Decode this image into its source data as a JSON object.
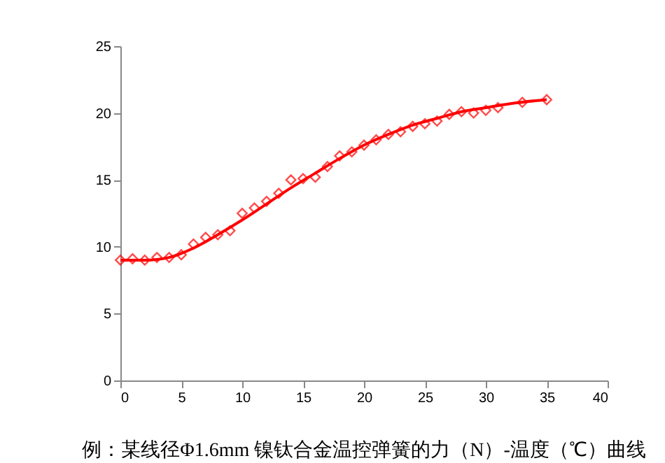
{
  "chart_data": {
    "type": "scatter",
    "xlim": [
      0,
      40
    ],
    "xticks": [
      0,
      5,
      10,
      15,
      20,
      25,
      30,
      35,
      40
    ],
    "ylim": [
      0,
      25
    ],
    "yticks": [
      0,
      5,
      10,
      15,
      20,
      25
    ],
    "grid": false,
    "annotations": [
      "例：某线径Φ1.6mm 镍钛合金温控弹簧的力（N）-温度（℃）曲线"
    ],
    "series": [
      {
        "marker": "diamond",
        "color": "#ff0000",
        "x": [
          0,
          1,
          2,
          3,
          4,
          5,
          6,
          7,
          8,
          9,
          10,
          11,
          12,
          13,
          14,
          15,
          16,
          17,
          18,
          19,
          20,
          21,
          22,
          23,
          24,
          25,
          26,
          27,
          28,
          29,
          30,
          31,
          33,
          35
        ],
        "values": [
          9.0,
          9.1,
          9.0,
          9.2,
          9.2,
          9.4,
          10.2,
          10.7,
          10.9,
          11.2,
          12.5,
          12.9,
          13.4,
          14.0,
          15.0,
          15.1,
          15.2,
          16.0,
          16.8,
          17.1,
          17.6,
          18.0,
          18.4,
          18.6,
          19.0,
          19.2,
          19.4,
          19.9,
          20.1,
          20.0,
          20.2,
          20.4,
          20.8,
          21.0
        ]
      },
      {
        "type": "line",
        "marker": "none",
        "line_style": "solid",
        "color": "#ff0000",
        "x": [
          0,
          2,
          4,
          6,
          8,
          10,
          12,
          14,
          16,
          18,
          20,
          22,
          24,
          26,
          28,
          30,
          32,
          35
        ],
        "values": [
          9.0,
          9.0,
          9.2,
          9.9,
          10.9,
          12.0,
          13.2,
          14.4,
          15.5,
          16.6,
          17.6,
          18.4,
          19.1,
          19.6,
          20.1,
          20.4,
          20.7,
          21.0
        ]
      }
    ]
  }
}
